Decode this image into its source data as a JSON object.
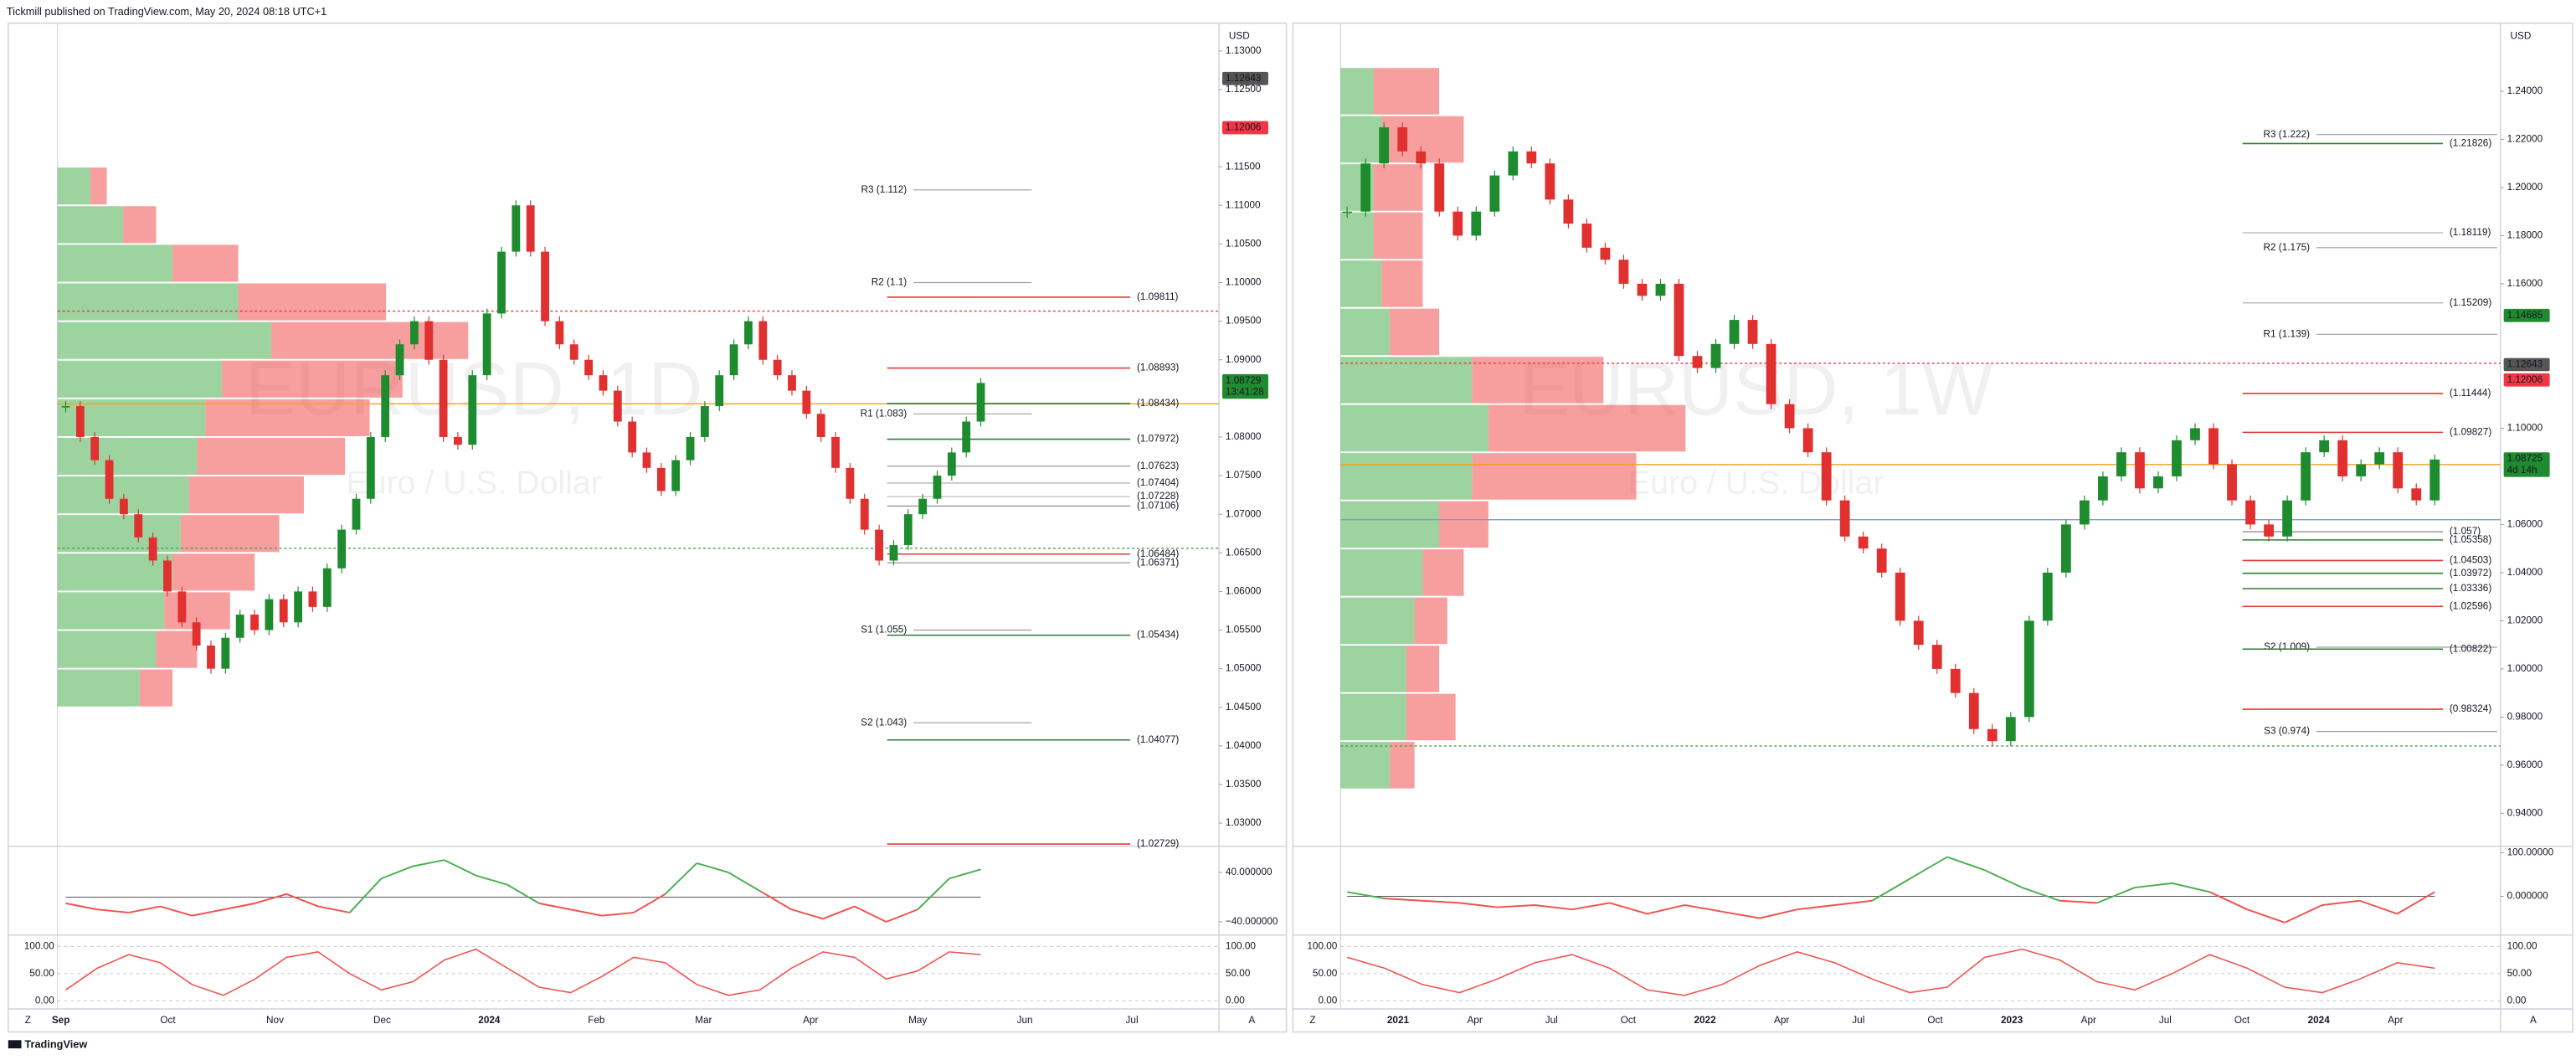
{
  "header": "Tickmill published on TradingView.com, May 20, 2024 08:18 UTC+1",
  "footer": "TradingView",
  "panels": [
    {
      "watermark": "EURUSD, 1D",
      "subtitle": "Euro / U.S. Dollar",
      "currency": "USD",
      "ylim": [
        1.027,
        1.1336
      ],
      "yticks": [
        {
          "value": 1.03,
          "label": "1.03000"
        },
        {
          "value": 1.035,
          "label": "1.03500"
        },
        {
          "value": 1.04,
          "label": "1.04000"
        },
        {
          "value": 1.045,
          "label": "1.04500"
        },
        {
          "value": 1.05,
          "label": "1.05000"
        },
        {
          "value": 1.055,
          "label": "1.05500"
        },
        {
          "value": 1.06,
          "label": "1.06000"
        },
        {
          "value": 1.065,
          "label": "1.06500"
        },
        {
          "value": 1.07,
          "label": "1.07000"
        },
        {
          "value": 1.075,
          "label": "1.07500"
        },
        {
          "value": 1.08,
          "label": "1.08000"
        },
        {
          "value": 1.09,
          "label": "1.09000"
        },
        {
          "value": 1.095,
          "label": "1.09500"
        },
        {
          "value": 1.1,
          "label": "1.10000"
        },
        {
          "value": 1.105,
          "label": "1.10500"
        },
        {
          "value": 1.11,
          "label": "1.11000"
        },
        {
          "value": 1.115,
          "label": "1.11500"
        },
        {
          "value": 1.125,
          "label": "1.12500"
        },
        {
          "value": 1.13,
          "label": "1.13000"
        }
      ],
      "axis_tags": [
        {
          "value": 1.12643,
          "label": "1.12643",
          "color": "#555555"
        },
        {
          "value": 1.12006,
          "label": "1.12006",
          "color": "#f23645"
        },
        {
          "value": 1.08729,
          "label": "1.08729",
          "color": "#1f8a2f",
          "sub": "13:41:28"
        }
      ],
      "pivots": [
        {
          "value": 1.112,
          "label": "R3 (1.112)"
        },
        {
          "value": 1.1,
          "label": "R2 (1.1)"
        },
        {
          "value": 1.083,
          "label": "R1 (1.083)"
        },
        {
          "value": 1.055,
          "label": "S1 (1.055)"
        },
        {
          "value": 1.043,
          "label": "S2 (1.043)"
        }
      ],
      "levels": [
        {
          "value": 1.09811,
          "label": "(1.09811)",
          "color": "#e53935"
        },
        {
          "value": 1.08893,
          "label": "(1.08893)",
          "color": "#e53935"
        },
        {
          "value": 1.08434,
          "label": "(1.08434)",
          "color": "#2e7d32"
        },
        {
          "value": 1.07972,
          "label": "(1.07972)",
          "color": "#2e7d32"
        },
        {
          "value": 1.07623,
          "label": "(1.07623)",
          "color": "#b0b0b0"
        },
        {
          "value": 1.07404,
          "label": "(1.07404)",
          "color": "#c0c0c0"
        },
        {
          "value": 1.07228,
          "label": "(1.07228)",
          "color": "#c8c8c8"
        },
        {
          "value": 1.07106,
          "label": "(1.07106)",
          "color": "#a0a0a0"
        },
        {
          "value": 1.06484,
          "label": "(1.06484)",
          "color": "#e53935"
        },
        {
          "value": 1.06371,
          "label": "(1.06371)",
          "color": "#b0b0b0"
        },
        {
          "value": 1.05434,
          "label": "(1.05434)",
          "color": "#2e7d32"
        },
        {
          "value": 1.04077,
          "label": "(1.04077)",
          "color": "#2e7d32"
        },
        {
          "value": 1.02729,
          "label": "(1.02729)",
          "color": "#e53935"
        }
      ],
      "hlines": [
        {
          "value": 1.0843,
          "color": "#f0a020",
          "dash": false
        },
        {
          "value": 1.0963,
          "color": "#e53935",
          "dash": true
        },
        {
          "value": 1.0656,
          "color": "#43a047",
          "dash": true
        }
      ],
      "closes": [
        1.084,
        1.08,
        1.077,
        1.072,
        1.07,
        1.067,
        1.064,
        1.06,
        1.056,
        1.053,
        1.05,
        1.054,
        1.057,
        1.055,
        1.059,
        1.056,
        1.06,
        1.058,
        1.063,
        1.068,
        1.072,
        1.08,
        1.088,
        1.092,
        1.095,
        1.09,
        1.08,
        1.079,
        1.088,
        1.096,
        1.104,
        1.11,
        1.104,
        1.095,
        1.092,
        1.09,
        1.088,
        1.086,
        1.082,
        1.078,
        1.076,
        1.073,
        1.077,
        1.08,
        1.084,
        1.088,
        1.092,
        1.095,
        1.09,
        1.088,
        1.086,
        1.083,
        1.08,
        1.076,
        1.072,
        1.068,
        1.064,
        1.066,
        1.07,
        1.072,
        1.075,
        1.078,
        1.082,
        1.087
      ],
      "profile": {
        "bins": [
          1.045,
          1.05,
          1.055,
          1.06,
          1.065,
          1.07,
          1.075,
          1.08,
          1.085,
          1.09,
          1.095,
          1.1,
          1.105,
          1.11,
          1.115
        ],
        "buy": [
          50,
          60,
          65,
          70,
          75,
          80,
          85,
          90,
          100,
          130,
          110,
          70,
          40,
          20
        ],
        "sell": [
          20,
          25,
          40,
          50,
          60,
          70,
          90,
          100,
          110,
          120,
          90,
          40,
          20,
          10
        ]
      },
      "osc": {
        "ylim": [
          -56,
          77
        ],
        "ticks": [
          {
            "value": 40,
            "label": "40.000000"
          },
          {
            "value": -40,
            "label": "−40.000000"
          }
        ],
        "values": [
          -10,
          -20,
          -25,
          -15,
          -30,
          -20,
          -10,
          5,
          -15,
          -25,
          30,
          50,
          60,
          35,
          20,
          -10,
          -20,
          -30,
          -25,
          5,
          55,
          40,
          10,
          -20,
          -35,
          -15,
          -40,
          -20,
          30,
          45
        ]
      },
      "stoch": {
        "ylim": [
          -9,
          112
        ],
        "ticks": [
          {
            "value": 100,
            "label": "100.00"
          },
          {
            "value": 50,
            "label": "50.00"
          },
          {
            "value": 0,
            "label": "0.00"
          }
        ],
        "values": [
          20,
          60,
          85,
          70,
          30,
          10,
          40,
          80,
          90,
          50,
          20,
          35,
          75,
          95,
          60,
          25,
          15,
          45,
          80,
          70,
          30,
          10,
          20,
          60,
          90,
          80,
          40,
          55,
          90,
          85
        ]
      },
      "months": [
        "Sep",
        "Oct",
        "Nov",
        "Dec",
        "2024",
        "Feb",
        "Mar",
        "Apr",
        "May",
        "Jun",
        "Jul"
      ],
      "buttons": [
        "Z",
        "A"
      ]
    },
    {
      "watermark": "EURUSD, 1W",
      "subtitle": "Euro / U.S. Dollar",
      "currency": "USD",
      "ylim": [
        0.9263,
        1.2683
      ],
      "yticks": [
        {
          "value": 0.94,
          "label": "0.94000"
        },
        {
          "value": 0.96,
          "label": "0.96000"
        },
        {
          "value": 0.98,
          "label": "0.98000"
        },
        {
          "value": 1.0,
          "label": "1.00000"
        },
        {
          "value": 1.02,
          "label": "1.02000"
        },
        {
          "value": 1.04,
          "label": "1.04000"
        },
        {
          "value": 1.06,
          "label": "1.06000"
        },
        {
          "value": 1.1,
          "label": "1.10000"
        },
        {
          "value": 1.16,
          "label": "1.16000"
        },
        {
          "value": 1.18,
          "label": "1.18000"
        },
        {
          "value": 1.2,
          "label": "1.20000"
        },
        {
          "value": 1.22,
          "label": "1.22000"
        },
        {
          "value": 1.24,
          "label": "1.24000"
        }
      ],
      "axis_tags": [
        {
          "value": 1.14685,
          "label": "1.14685",
          "color": "#1f8a2f"
        },
        {
          "value": 1.12643,
          "label": "1.12643",
          "color": "#555555"
        },
        {
          "value": 1.12006,
          "label": "1.12006",
          "color": "#f23645"
        },
        {
          "value": 1.08725,
          "label": "1.08725",
          "color": "#1f8a2f",
          "sub": "4d 14h"
        }
      ],
      "pivots": [
        {
          "value": 1.222,
          "label": "R3 (1.222)"
        },
        {
          "value": 1.175,
          "label": "R2 (1.175)"
        },
        {
          "value": 1.139,
          "label": "R1 (1.139)"
        },
        {
          "value": 1.009,
          "label": "S2 (1.009)"
        },
        {
          "value": 0.974,
          "label": "S3 (0.974)"
        }
      ],
      "levels": [
        {
          "value": 1.21826,
          "label": "(1.21826)",
          "color": "#2e7d32"
        },
        {
          "value": 1.18119,
          "label": "(1.18119)",
          "color": "#c0c0c0"
        },
        {
          "value": 1.15209,
          "label": "(1.15209)",
          "color": "#c0c0c0"
        },
        {
          "value": 1.11444,
          "label": "(1.11444)",
          "color": "#e53935"
        },
        {
          "value": 1.09827,
          "label": "(1.09827)",
          "color": "#e53935"
        },
        {
          "value": 1.057,
          "label": "(1.057)",
          "color": "#a0a0a0"
        },
        {
          "value": 1.05358,
          "label": "(1.05358)",
          "color": "#2e7d32"
        },
        {
          "value": 1.04503,
          "label": "(1.04503)",
          "color": "#e53935"
        },
        {
          "value": 1.03972,
          "label": "(1.03972)",
          "color": "#2e7d32"
        },
        {
          "value": 1.03336,
          "label": "(1.03336)",
          "color": "#2e7d32"
        },
        {
          "value": 1.02596,
          "label": "(1.02596)",
          "color": "#e53935"
        },
        {
          "value": 1.00822,
          "label": "(1.00822)",
          "color": "#2e7d32"
        },
        {
          "value": 0.98324,
          "label": "(0.98324)",
          "color": "#e53935"
        }
      ],
      "hlines": [
        {
          "value": 1.0849,
          "color": "#f0a020",
          "dash": false
        },
        {
          "value": 1.127,
          "color": "#e53935",
          "dash": true
        },
        {
          "value": 0.968,
          "color": "#43a047",
          "dash": true
        },
        {
          "value": 1.062,
          "color": "#7e9cc0",
          "dash": false
        }
      ],
      "closes": [
        1.19,
        1.21,
        1.225,
        1.215,
        1.21,
        1.19,
        1.18,
        1.19,
        1.205,
        1.215,
        1.21,
        1.195,
        1.185,
        1.175,
        1.17,
        1.16,
        1.155,
        1.16,
        1.13,
        1.125,
        1.135,
        1.145,
        1.135,
        1.11,
        1.1,
        1.09,
        1.07,
        1.055,
        1.05,
        1.04,
        1.02,
        1.01,
        1.0,
        0.99,
        0.975,
        0.97,
        0.98,
        1.02,
        1.04,
        1.06,
        1.07,
        1.08,
        1.09,
        1.075,
        1.08,
        1.095,
        1.1,
        1.085,
        1.07,
        1.06,
        1.055,
        1.07,
        1.09,
        1.095,
        1.08,
        1.085,
        1.09,
        1.075,
        1.07,
        1.087
      ],
      "profile": {
        "bins": [
          0.95,
          0.97,
          0.99,
          1.01,
          1.03,
          1.05,
          1.07,
          1.09,
          1.11,
          1.13,
          1.15,
          1.17,
          1.19,
          1.21,
          1.23,
          1.25
        ],
        "buy": [
          30,
          40,
          40,
          45,
          50,
          60,
          80,
          90,
          80,
          30,
          25,
          20,
          20,
          25,
          20
        ],
        "sell": [
          15,
          30,
          20,
          20,
          25,
          30,
          100,
          120,
          80,
          30,
          25,
          30,
          30,
          50,
          40
        ]
      },
      "osc": {
        "ylim": [
          -81,
          107
        ],
        "ticks": [
          {
            "value": 100,
            "label": "100.00000"
          },
          {
            "value": 0,
            "label": "0.000000"
          }
        ],
        "values": [
          10,
          -5,
          -10,
          -15,
          -25,
          -20,
          -30,
          -15,
          -40,
          -20,
          -35,
          -50,
          -30,
          -20,
          -10,
          40,
          90,
          60,
          20,
          -10,
          -15,
          20,
          30,
          10,
          -30,
          -60,
          -20,
          -10,
          -40,
          10
        ]
      },
      "stoch": {
        "ylim": [
          -9,
          112
        ],
        "ticks": [
          {
            "value": 100,
            "label": "100.00"
          },
          {
            "value": 50,
            "label": "50.00"
          },
          {
            "value": 0,
            "label": "0.00"
          }
        ],
        "values": [
          80,
          60,
          30,
          15,
          40,
          70,
          85,
          60,
          20,
          10,
          30,
          65,
          90,
          70,
          40,
          15,
          25,
          80,
          95,
          75,
          35,
          20,
          50,
          85,
          60,
          25,
          15,
          40,
          70,
          60
        ]
      },
      "months": [
        "2021",
        "Apr",
        "Jul",
        "Oct",
        "2022",
        "Apr",
        "Jul",
        "Oct",
        "2023",
        "Apr",
        "Jul",
        "Oct",
        "2024",
        "Apr"
      ],
      "buttons": [
        "Z",
        "A"
      ]
    }
  ]
}
